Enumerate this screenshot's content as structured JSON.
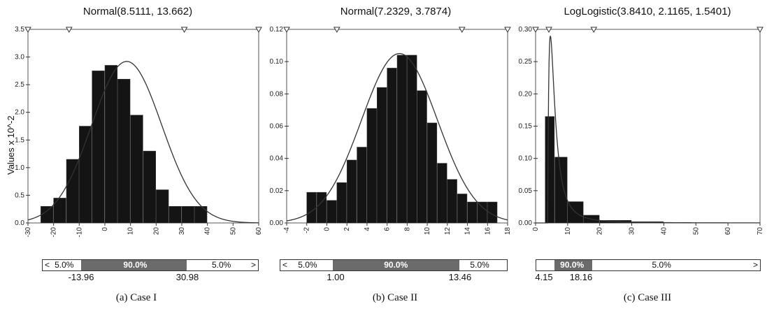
{
  "y_axis_label": "Values x 10^-2",
  "chart_data": [
    {
      "type": "bar",
      "title": "Normal(8.5111, 13.662)",
      "caption": "(a)  Case  I",
      "xlim": [
        -30,
        60
      ],
      "ylim": [
        0,
        3.5
      ],
      "x_ticks": [
        "-30",
        "-20",
        "-10",
        "0",
        "10",
        "20",
        "30",
        "40",
        "50",
        "60"
      ],
      "y_ticks": [
        "0.0",
        "0.5",
        "1.0",
        "1.5",
        "2.0",
        "2.5",
        "3.0",
        "3.5"
      ],
      "bin_edges": [
        -25,
        -20,
        -15,
        -10,
        -5,
        0,
        5,
        10,
        15,
        20,
        25,
        30,
        35,
        40
      ],
      "values": [
        0.3,
        0.45,
        1.15,
        1.75,
        2.75,
        2.85,
        2.6,
        1.95,
        1.3,
        0.6,
        0.3,
        0.3,
        0.3
      ],
      "fit": {
        "dist": "normal",
        "mean": 8.5111,
        "sd": 13.662,
        "peak": 2.92
      },
      "markers": [
        -30,
        -13.96,
        30.98,
        60
      ],
      "percentile_bar": {
        "left": "5.0%",
        "middle": "90.0%",
        "right": "5.0%",
        "low_value": "-13.96",
        "high_value": "30.98",
        "low_frac": 0.18,
        "high_frac": 0.67
      }
    },
    {
      "type": "bar",
      "title": "Normal(7.2329, 3.7874)",
      "caption": "(b)  Case  II",
      "xlim": [
        -4,
        18
      ],
      "ylim": [
        0,
        0.12
      ],
      "x_ticks": [
        "-4",
        "-2",
        "0",
        "2",
        "4",
        "6",
        "8",
        "10",
        "12",
        "14",
        "16",
        "18"
      ],
      "y_ticks": [
        "0.00",
        "0.02",
        "0.04",
        "0.06",
        "0.08",
        "0.10",
        "0.12"
      ],
      "bin_edges": [
        -2,
        -1,
        0,
        1,
        2,
        3,
        4,
        5,
        6,
        7,
        8,
        9,
        10,
        11,
        12,
        13,
        14,
        15,
        16,
        17
      ],
      "values": [
        0.019,
        0.019,
        0.014,
        0.025,
        0.039,
        0.047,
        0.071,
        0.084,
        0.096,
        0.104,
        0.104,
        0.082,
        0.062,
        0.037,
        0.027,
        0.018,
        0.013,
        0.013,
        0.013
      ],
      "fit": {
        "dist": "normal",
        "mean": 7.2329,
        "sd": 3.7874,
        "peak": 0.105
      },
      "markers": [
        -4,
        1.0,
        13.46,
        18
      ],
      "percentile_bar": {
        "left": "5.0%",
        "middle": "90.0%",
        "right": "5.0%",
        "low_value": "1.00",
        "high_value": "13.46",
        "low_frac": 0.23,
        "high_frac": 0.79
      }
    },
    {
      "type": "bar",
      "title": "LogLogistic(3.8410, 2.1165, 1.5401)",
      "caption": "(c)  Case  III",
      "xlim": [
        0,
        70
      ],
      "ylim": [
        0,
        0.3
      ],
      "x_ticks": [
        "0",
        "10",
        "20",
        "30",
        "40",
        "50",
        "60",
        "70"
      ],
      "y_ticks": [
        "0.00",
        "0.05",
        "0.10",
        "0.15",
        "0.20",
        "0.25",
        "0.30"
      ],
      "bin_edges": [
        3,
        6,
        10,
        15,
        20,
        30,
        40
      ],
      "values": [
        0.165,
        0.102,
        0.033,
        0.012,
        0.004,
        0.002
      ],
      "fit": {
        "dist": "loglogistic",
        "gamma": 3.841,
        "beta": 2.1165,
        "alpha": 1.5401,
        "peak": 0.29
      },
      "markers": [
        0,
        4.15,
        18.16,
        70
      ],
      "percentile_bar": {
        "left": "",
        "middle": "90.0%",
        "right": "5.0%",
        "low_value": "4.15",
        "high_value": "18.16",
        "low_frac": 0.08,
        "high_frac": 0.25
      }
    }
  ]
}
